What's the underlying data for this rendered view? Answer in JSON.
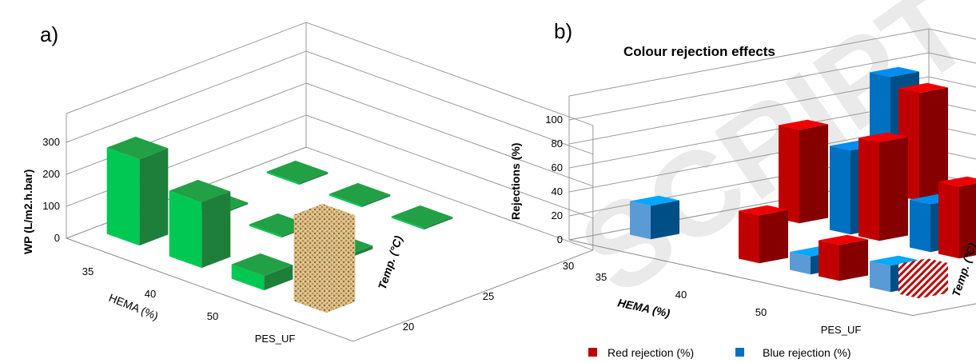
{
  "chart_data": [
    {
      "panel": "a)",
      "type": "bar3d",
      "title": "",
      "zlabel": "WP (L/m2.h.bar)",
      "xlabel": "HEMA (%)",
      "ylabel": "Temp. (°C)",
      "zticks": [
        "0",
        "100",
        "200",
        "300"
      ],
      "zlim": [
        0,
        300
      ],
      "categories": [
        "35",
        "40",
        "50",
        "PES_UF"
      ],
      "temperatures": [
        "20",
        "25",
        "30"
      ],
      "series": [
        {
          "category": "35",
          "temp": "20",
          "value": 270,
          "color": "#00b050"
        },
        {
          "category": "35",
          "temp": "25",
          "value": 5,
          "color": "#00b050"
        },
        {
          "category": "35",
          "temp": "30",
          "value": 5,
          "color": "#00b050"
        },
        {
          "category": "40",
          "temp": "20",
          "value": 205,
          "color": "#00b050"
        },
        {
          "category": "40",
          "temp": "25",
          "value": 5,
          "color": "#00b050"
        },
        {
          "category": "40",
          "temp": "30",
          "value": 5,
          "color": "#00b050"
        },
        {
          "category": "50",
          "temp": "20",
          "value": 45,
          "color": "#00b050"
        },
        {
          "category": "50",
          "temp": "25",
          "value": 10,
          "color": "#00b050"
        },
        {
          "category": "50",
          "temp": "30",
          "value": 5,
          "color": "#00b050"
        },
        {
          "category": "PES_UF",
          "temp": "20",
          "value": 270,
          "color": "#d4b57a"
        }
      ]
    },
    {
      "panel": "b)",
      "type": "bar3d",
      "title": "Colour rejection effects",
      "zlabel": "Rejections (%)",
      "xlabel": "HEMA (%)",
      "ylabel": "Temp. (°C)",
      "zticks": [
        "0",
        "20",
        "40",
        "60",
        "80",
        "100"
      ],
      "zlim": [
        0,
        100
      ],
      "categories": [
        "35",
        "40",
        "50",
        "PES_UF"
      ],
      "temperatures": [
        "20",
        "25",
        "30"
      ],
      "legend": [
        {
          "name": "Red rejection (%)",
          "color": "#c00000"
        },
        {
          "name": "Blue rejection (%)",
          "color": "#0070c0"
        }
      ],
      "series": [
        {
          "name": "Red rejection (%)",
          "values": [
            {
              "category": "35",
              "temp": "20",
              "value": 0
            },
            {
              "category": "35",
              "temp": "25",
              "value": 78
            },
            {
              "category": "35",
              "temp": "30",
              "value": 90
            },
            {
              "category": "40",
              "temp": "20",
              "value": 40
            },
            {
              "category": "40",
              "temp": "25",
              "value": 82
            },
            {
              "category": "40",
              "temp": "30",
              "value": 90
            },
            {
              "category": "50",
              "temp": "20",
              "value": 30
            },
            {
              "category": "50",
              "temp": "25",
              "value": 60
            },
            {
              "category": "50",
              "temp": "30",
              "value": 0
            },
            {
              "category": "PES_UF",
              "temp": "20",
              "value": 25
            }
          ]
        },
        {
          "name": "Blue rejection (%)",
          "values": [
            {
              "category": "35",
              "temp": "20",
              "value": 28
            },
            {
              "category": "35",
              "temp": "25",
              "value": 0
            },
            {
              "category": "35",
              "temp": "30",
              "value": 98
            },
            {
              "category": "40",
              "temp": "20",
              "value": 0
            },
            {
              "category": "40",
              "temp": "25",
              "value": 70
            },
            {
              "category": "40",
              "temp": "30",
              "value": 0
            },
            {
              "category": "50",
              "temp": "20",
              "value": 15
            },
            {
              "category": "50",
              "temp": "25",
              "value": 40
            },
            {
              "category": "50",
              "temp": "30",
              "value": 0
            },
            {
              "category": "PES_UF",
              "temp": "20",
              "value": 22
            }
          ]
        }
      ]
    }
  ],
  "watermark": "SCRIPT"
}
